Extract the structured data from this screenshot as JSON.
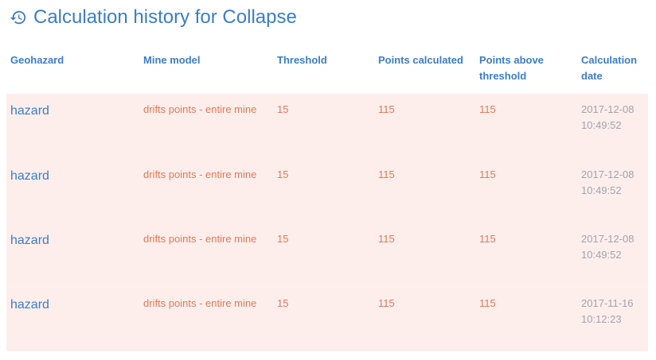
{
  "page": {
    "title": "Calculation history for Collapse",
    "title_icon": "history-icon",
    "accent_color": "#3c7dc4",
    "row_background": "#fdeeec",
    "value_color": "#e07a57",
    "date_color": "#a3a3ad"
  },
  "table": {
    "headers": {
      "geohazard": "Geohazard",
      "mine_model": "Mine model",
      "threshold": "Threshold",
      "points_calculated": "Points calculated",
      "points_above": "Points above threshold",
      "calc_date": "Calculation date"
    },
    "rows": [
      {
        "geohazard": "hazard",
        "mine_model": "drifts points - entire mine",
        "threshold": "15",
        "points_calculated": "115",
        "points_above": "115",
        "calc_date": "2017-12-08 10:49:52"
      },
      {
        "geohazard": "hazard",
        "mine_model": "drifts points - entire mine",
        "threshold": "15",
        "points_calculated": "115",
        "points_above": "115",
        "calc_date": "2017-12-08 10:49:52"
      },
      {
        "geohazard": "hazard",
        "mine_model": "drifts points - entire mine",
        "threshold": "15",
        "points_calculated": "115",
        "points_above": "115",
        "calc_date": "2017-12-08 10:49:52"
      },
      {
        "geohazard": "hazard",
        "mine_model": "drifts points - entire mine",
        "threshold": "15",
        "points_calculated": "115",
        "points_above": "115",
        "calc_date": "2017-11-16 10:12:23"
      }
    ]
  }
}
